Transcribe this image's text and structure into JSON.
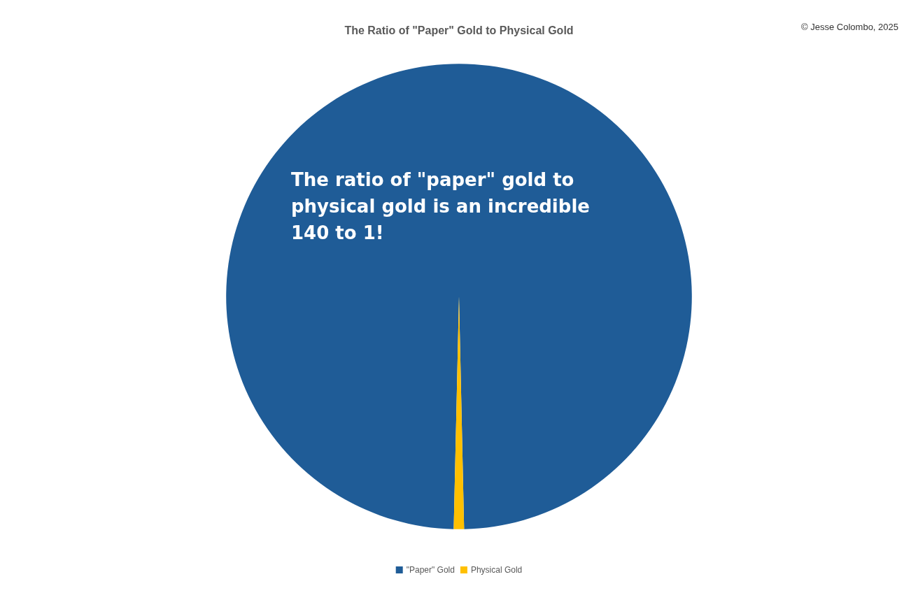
{
  "chart_data": {
    "type": "pie",
    "title": "The Ratio of \"Paper\" Gold to Physical Gold",
    "categories": [
      "\"Paper\" Gold",
      "Physical Gold"
    ],
    "values": [
      99.29,
      0.71
    ],
    "colors": [
      "#1f5c97",
      "#ffc000"
    ],
    "legend": "bottom",
    "annotations": [
      "The ratio of \"paper\" gold to physical gold is an incredible 140 to 1!",
      "© Jesse Colombo, 2025"
    ]
  }
}
